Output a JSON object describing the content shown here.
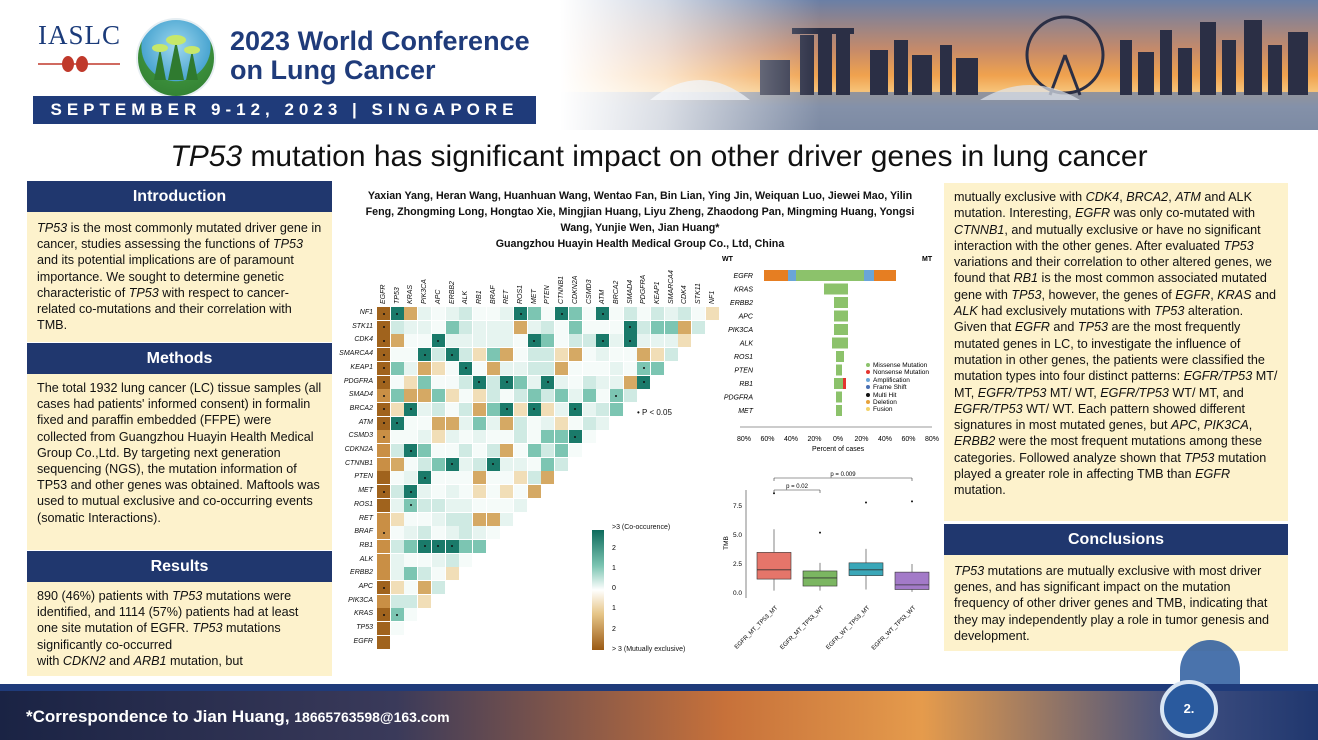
{
  "header": {
    "org": "IASLC",
    "conference_line1": "2023 World Conference",
    "conference_line2": "on Lung Cancer",
    "date_bar": "SEPTEMBER 9-12, 2023 | SINGAPORE"
  },
  "title": {
    "italic": "TP53",
    "rest": " mutation has significant impact on other driver genes in lung cancer"
  },
  "authors": {
    "line1": "Yaxian Yang, Heran Wang, Huanhuan Wang, Wentao Fan, Bin Lian, Ying Jin, Weiquan Luo, Jiewei Mao, Yilin",
    "line2": "Feng, Zhongming Long, Hongtao Xie, Mingjian Huang, Liyu Zheng, Zhaodong Pan, Mingming Huang, Yongsi",
    "line3": "Wang, Yunjie Wen, Jian Huang*",
    "affiliation": "Guangzhou Huayin Health Medical Group Co., Ltd, China"
  },
  "introduction": {
    "heading": "Introduction"
  },
  "methods": {
    "heading": "Methods",
    "text": "The total 1932 lung cancer (LC) tissue samples (all cases had patients' informed consent) in formalin fixed and paraffin embedded (FFPE) were collected from Guangzhou Huayin Health Medical Group Co.,Ltd. By targeting next generation sequencing (NGS), the mutation information of TP53 and other genes was obtained. Maftools was used to mutual exclusive and co-occurring events (somatic Interactions)."
  },
  "results": {
    "heading": "Results"
  },
  "conclusions": {
    "heading": "Conclusions"
  },
  "heatmap": {
    "genes_cols": [
      "EGFR",
      "TP53",
      "KRAS",
      "PIK3CA",
      "APC",
      "ERBB2",
      "ALK",
      "RB1",
      "BRAF",
      "RET",
      "ROS1",
      "MET",
      "PTEN",
      "CTNNB1",
      "CDKN2A",
      "CSMD3",
      "ATM",
      "BRCA2",
      "SMAD4",
      "PDGFRA",
      "KEAP1",
      "SMARCA4",
      "CDK4",
      "STK11",
      "NF1"
    ],
    "genes_rows": [
      "NF1",
      "STK11",
      "CDK4",
      "SMARCA4",
      "KEAP1",
      "PDGFRA",
      "SMAD4",
      "BRCA2",
      "ATM",
      "CSMD3",
      "CDKN2A",
      "CTNNB1",
      "PTEN",
      "MET",
      "ROS1",
      "RET",
      "BRAF",
      "RB1",
      "ALK",
      "ERBB2",
      "APC",
      "PIK3CA",
      "KRAS",
      "TP53",
      "EGFR"
    ],
    "pval_legend": "• P < 0.05",
    "scale_top": ">3 (Co-occurence)",
    "scale_bottom": "> 3 (Mutually exclusive)",
    "scale_ticks": [
      "2",
      "1",
      "0",
      "1",
      "2"
    ]
  },
  "oncoplot": {
    "left_label": "WT",
    "right_label": "MT",
    "genes": [
      "EGFR",
      "KRAS",
      "ERBB2",
      "APC",
      "PIK3CA",
      "ALK",
      "ROS1",
      "PTEN",
      "RB1",
      "PDGFRA",
      "MET"
    ],
    "legend": [
      "Missense Mutation",
      "Nonsense Mutation",
      "Amplification",
      "Frame Shift",
      "Multi Hit",
      "Deletion",
      "Fusion"
    ],
    "legend_colors": [
      "#8cc26b",
      "#e3342f",
      "#6aa5d8",
      "#4a6fb3",
      "#111111",
      "#e6a23c",
      "#f2d36b"
    ],
    "x_ticks": [
      "80%",
      "60%",
      "40%",
      "20%",
      "0%",
      "20%",
      "40%",
      "60%",
      "80%"
    ],
    "x_label": "Percent of cases"
  },
  "boxplot": {
    "y_label": "TMB",
    "y_ticks": [
      "0.0",
      "2.5",
      "5.0",
      "7.5"
    ],
    "groups": [
      "EGFR_MT_TP53_MT",
      "EGFR_MT_TP53_WT",
      "EGFR_WT_TP53_MT",
      "EGFR_WT_TP53_WT"
    ],
    "colors": [
      "#e5756a",
      "#7bb661",
      "#3aa7b8",
      "#a37ac8"
    ],
    "p1": "p = 0.02",
    "p2": "p = 0.009"
  },
  "footer": {
    "correspondence": "*Correspondence to Jian Huang, ",
    "email": "18665763598@163.com",
    "page": "2."
  }
}
